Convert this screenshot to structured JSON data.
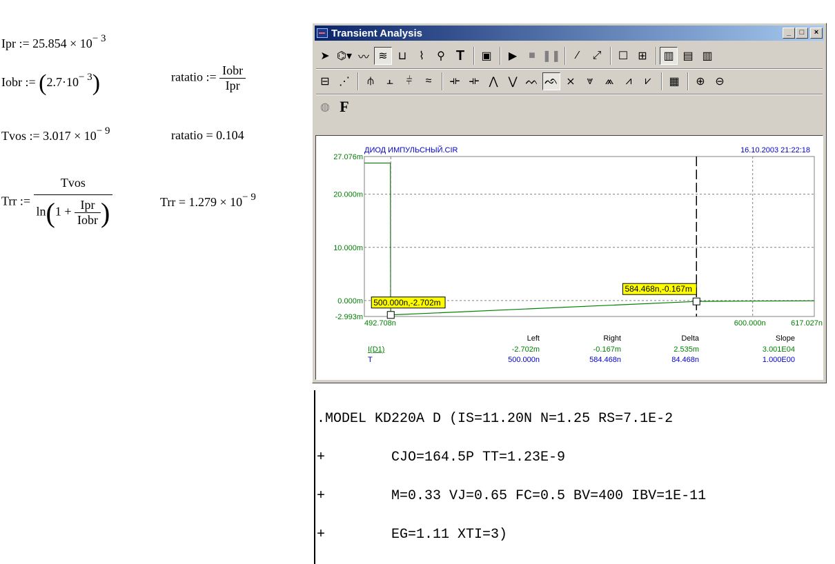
{
  "worksheet": {
    "ipr": {
      "lhs": "Ipr",
      "op": ":=",
      "mant": "25.854 × 10",
      "exp": "− 3"
    },
    "iobr": {
      "lhs": "Iobr",
      "op": ":=",
      "mant": "2.7·10",
      "exp": "− 3"
    },
    "ratatio_def": {
      "lhs": "ratatio",
      "op": ":=",
      "num": "Iobr",
      "den": "Ipr"
    },
    "tvos": {
      "lhs": "Tvos",
      "op": ":=",
      "mant": "3.017 × 10",
      "exp": "− 9"
    },
    "ratatio_val": {
      "lhs": "ratatio",
      "op": "=",
      "val": "0.104"
    },
    "trr_def": {
      "lhs": "Trr",
      "op": ":=",
      "num": "Tvos",
      "ln": "ln",
      "one": "1 +",
      "inum": "Ipr",
      "iden": "Iobr"
    },
    "trr_val": {
      "lhs": "Trr",
      "op": "=",
      "mant": "1.279 × 10",
      "exp": "− 9"
    }
  },
  "window": {
    "title": "Transient Analysis",
    "buttons": {
      "min": "_",
      "max": "□",
      "close": "×"
    },
    "toolbar3_F": "F"
  },
  "chart_data": {
    "type": "line",
    "title": "ДИОД ИМПУЛЬСНЫЙ.CIR",
    "timestamp": "16.10.2003 21:22:18",
    "xlim": [
      492.708,
      617.027
    ],
    "ylim": [
      -2.993,
      27.076
    ],
    "y_ticks": [
      "27.076m",
      "20.000m",
      "10.000m",
      "0.000m",
      "-2.993m"
    ],
    "y_tick_values": [
      27.076,
      20.0,
      10.0,
      0.0,
      -2.993
    ],
    "x_ticks": [
      "492.708n",
      "600.000n",
      "617.027n"
    ],
    "x_tick_values": [
      492.708,
      600.0,
      617.027
    ],
    "series": [
      {
        "name": "I(D1)",
        "color": "#008000",
        "x": [
          492.708,
          499.9,
          499.95,
          500.0,
          584.468,
          600.0,
          617.027
        ],
        "y": [
          25.854,
          25.854,
          0.0,
          -2.702,
          -0.167,
          -0.1,
          -0.05
        ]
      }
    ],
    "cursors": [
      {
        "label": "500.000n,-2.702m",
        "x": 500.0,
        "y": -2.702
      },
      {
        "label": "584.468n,-0.167m",
        "x": 584.468,
        "y": -0.167
      }
    ],
    "cursor_table": {
      "headers": [
        "Left",
        "Right",
        "Delta",
        "Slope"
      ],
      "rows": [
        {
          "name": "I(D1)",
          "values": [
            "-2.702m",
            "-0.167m",
            "2.535m",
            "3.001E04"
          ]
        },
        {
          "name": "T",
          "values": [
            "500.000n",
            "584.468n",
            "84.468n",
            "1.000E00"
          ]
        }
      ]
    }
  },
  "netlist": [
    ".MODEL KD220A D (IS=11.20N N=1.25 RS=7.1E-2",
    "+        CJO=164.5P TT=1.23E-9",
    "+        M=0.33 VJ=0.65 FC=0.5 BV=400 IBV=1E-11",
    "+        EG=1.11 XTI=3)"
  ]
}
